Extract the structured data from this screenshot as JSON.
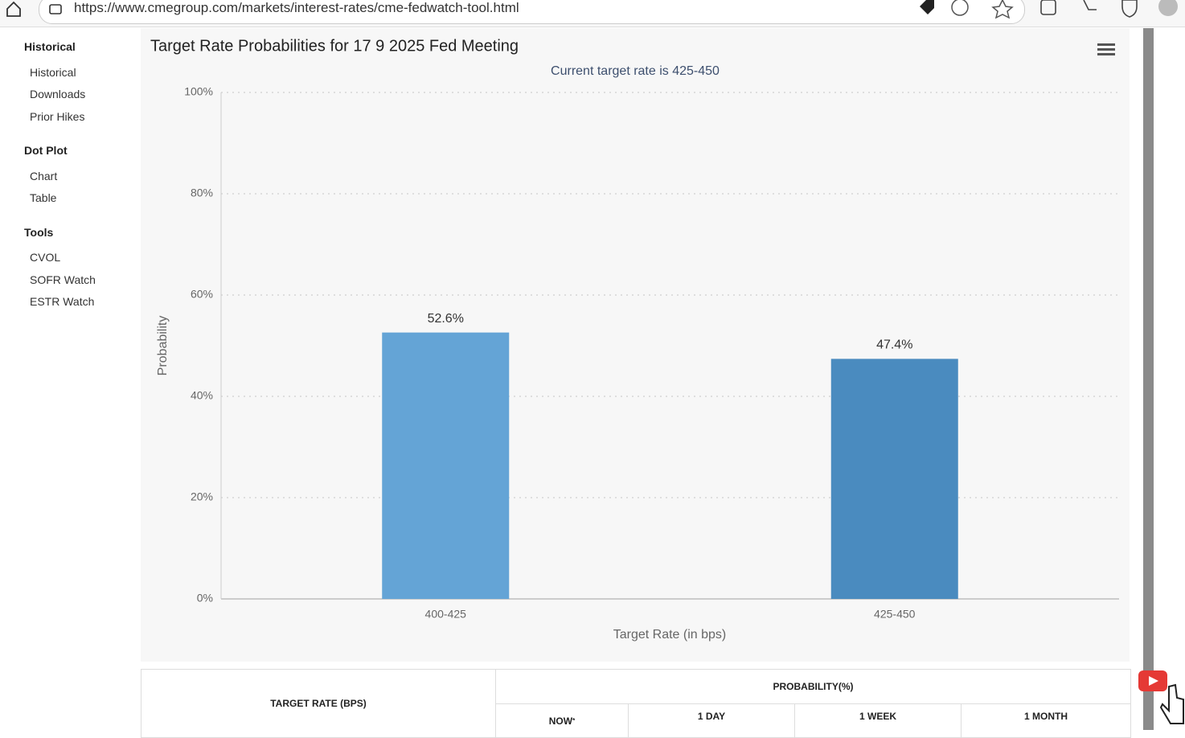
{
  "browser": {
    "url": "https://www.cmegroup.com/markets/interest-rates/cme-fedwatch-tool.html"
  },
  "sidebar": {
    "sections": [
      {
        "title": "Historical",
        "items": [
          "Historical",
          "Downloads",
          "Prior Hikes"
        ]
      },
      {
        "title": "Dot Plot",
        "items": [
          "Chart",
          "Table"
        ]
      },
      {
        "title": "Tools",
        "items": [
          "CVOL",
          "SOFR Watch",
          "ESTR Watch"
        ]
      }
    ]
  },
  "chart_data": {
    "type": "bar",
    "title": "Target Rate Probabilities for 17 9 2025 Fed Meeting",
    "subtitle": "Current target rate is 425-450",
    "x_label": "Target Rate (in bps)",
    "y_label": "Probability",
    "categories": [
      "400-425",
      "425-450"
    ],
    "values": [
      52.6,
      47.4
    ],
    "value_labels": [
      "52.6%",
      "47.4%"
    ],
    "colors": [
      "#64a4d6",
      "#4a8bbf"
    ],
    "ylim": [
      0,
      100
    ],
    "yticks": [
      {
        "value": 0,
        "label": "0%"
      },
      {
        "value": 20,
        "label": "20%"
      },
      {
        "value": 40,
        "label": "40%"
      },
      {
        "value": 60,
        "label": "60%"
      },
      {
        "value": 80,
        "label": "80%"
      },
      {
        "value": 100,
        "label": "100%"
      }
    ],
    "grid": true
  },
  "table": {
    "header": {
      "target_rate": "TARGET RATE (BPS)",
      "probability": "PROBABILITY(%)",
      "now": "NOW",
      "now_note": "*",
      "columns": [
        "1 DAY",
        "1 WEEK",
        "1 MONTH"
      ]
    }
  }
}
